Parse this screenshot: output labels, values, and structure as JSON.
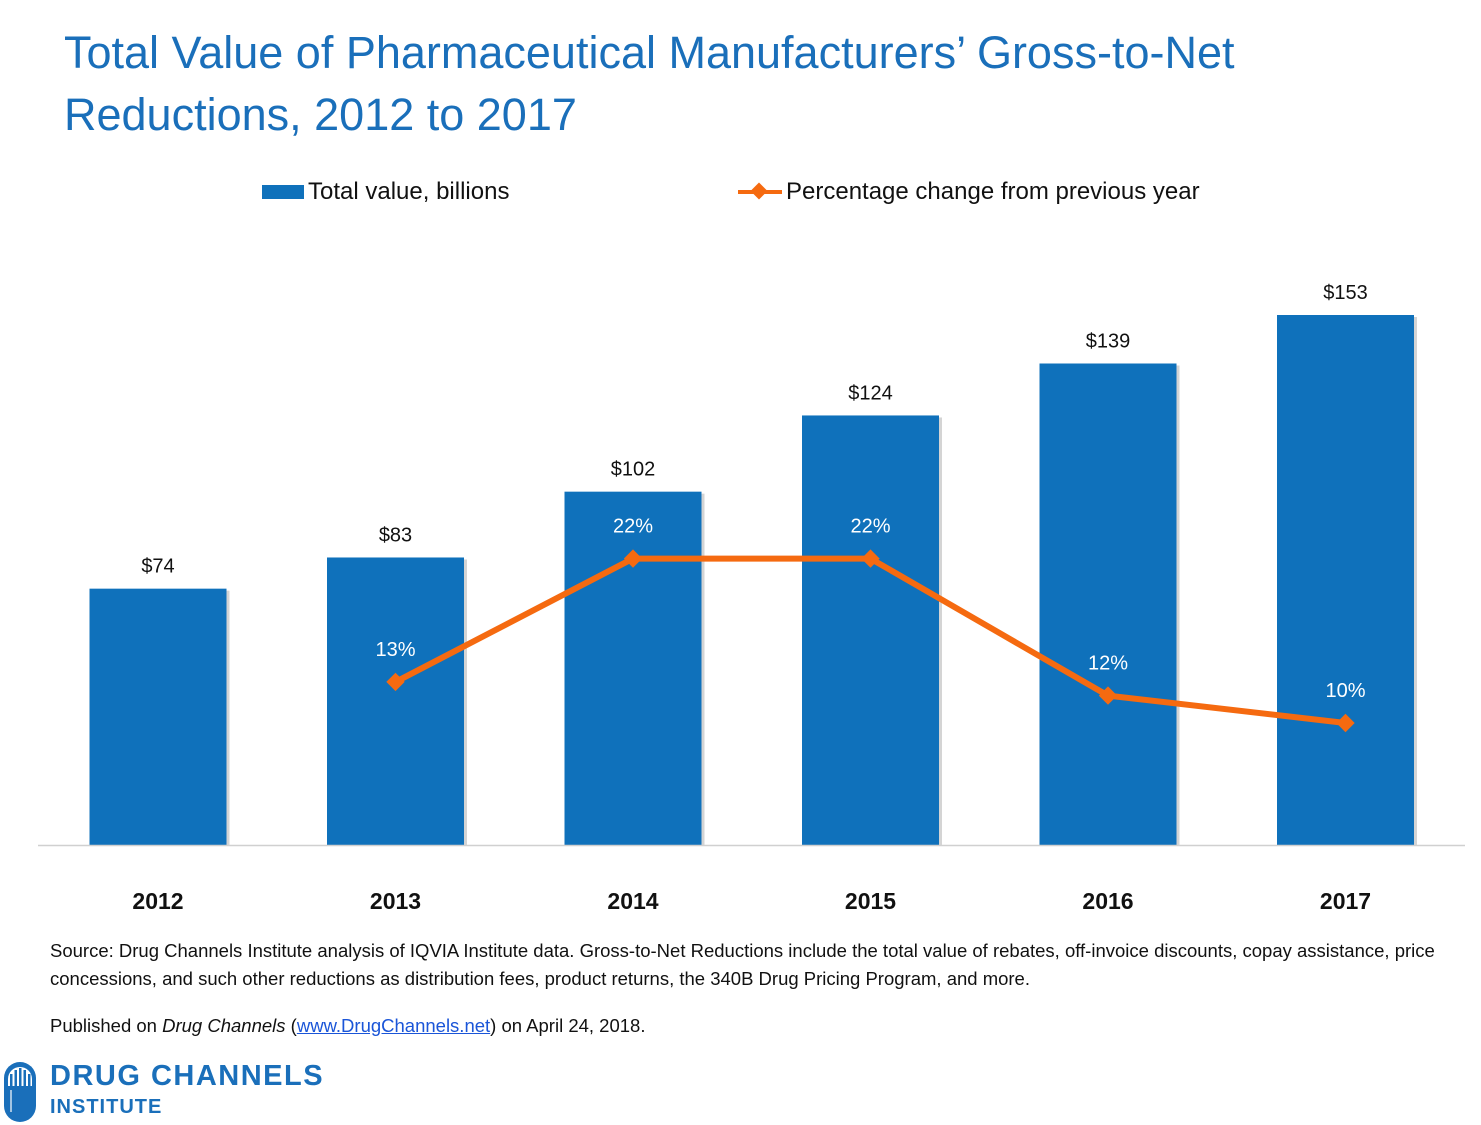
{
  "title": "Total Value of Pharmaceutical Manufacturers’ Gross-to-Net Reductions, 2012 to 2017",
  "legend": {
    "bars": "Total value, billions",
    "line": "Percentage change from previous year"
  },
  "colors": {
    "bar": "#0f71bb",
    "line": "#f56a10",
    "title": "#1a6fba"
  },
  "chart_data": {
    "type": "bar",
    "categories": [
      "2012",
      "2013",
      "2014",
      "2015",
      "2016",
      "2017"
    ],
    "series": [
      {
        "name": "Total value, billions",
        "type": "bar",
        "values": [
          74,
          83,
          102,
          124,
          139,
          153
        ],
        "labels": [
          "$74",
          "$83",
          "$102",
          "$124",
          "$139",
          "$153"
        ]
      },
      {
        "name": "Percentage change from previous year",
        "type": "line",
        "values": [
          null,
          13,
          22,
          22,
          12,
          10
        ],
        "labels": [
          "",
          "13%",
          "22%",
          "22%",
          "12%",
          "10%"
        ]
      }
    ],
    "title": "Total Value of Pharmaceutical Manufacturers’ Gross-to-Net Reductions, 2012 to 2017",
    "legend_position": "top"
  },
  "source": "Source: Drug Channels Institute analysis of IQVIA Institute data. Gross-to-Net Reductions include the total value of rebates, off-invoice discounts, copay assistance, price concessions, and such other reductions as distribution fees, product returns, the 340B Drug Pricing Program, and more.",
  "published": {
    "prefix": "Published on ",
    "outlet": "Drug Channels",
    "open_paren": " (",
    "link_text": "www.DrugChannels.net",
    "suffix": ") on April 24, 2018."
  },
  "logo": {
    "line1": "DRUG CHANNELS",
    "line2": "INSTITUTE"
  }
}
